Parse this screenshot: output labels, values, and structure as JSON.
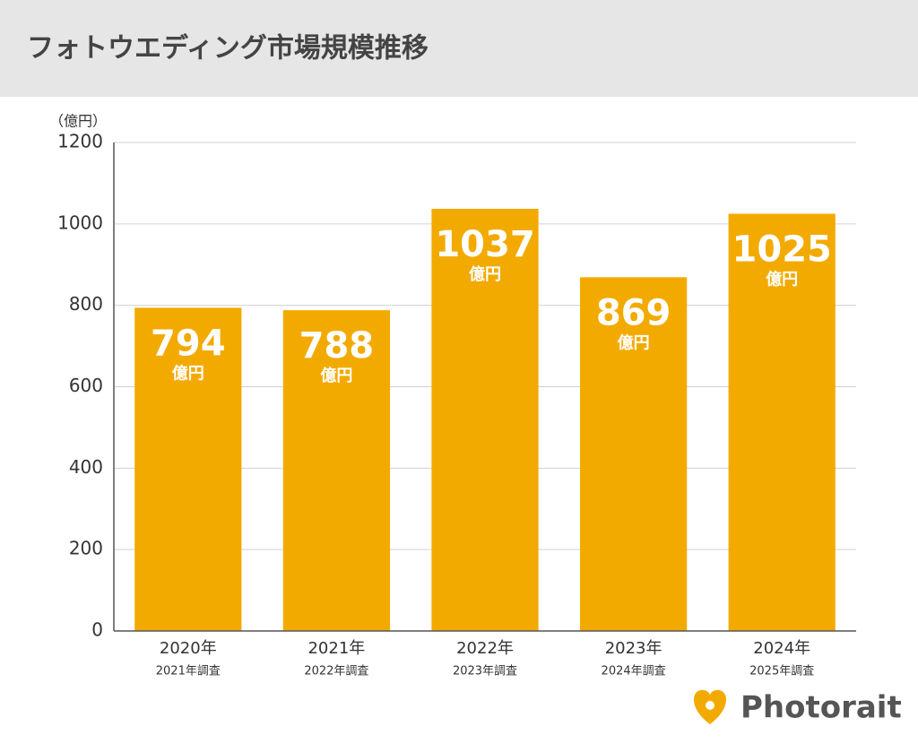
{
  "chart_data": {
    "type": "bar",
    "title": "フォトウエディング市場規模推移",
    "y_unit": "（億円）",
    "categories": [
      "2020年",
      "2021年",
      "2022年",
      "2023年",
      "2024年"
    ],
    "sublabels": [
      "2021年調査",
      "2022年調査",
      "2023年調査",
      "2024年調査",
      "2025年調査"
    ],
    "values": [
      794,
      788,
      1037,
      869,
      1025
    ],
    "value_unit": "億円",
    "color": "#f3aa00",
    "ylim": [
      0,
      1200
    ],
    "yticks": [
      0,
      200,
      400,
      600,
      800,
      1000,
      1200
    ],
    "grid": true,
    "brand": "Photorait"
  }
}
